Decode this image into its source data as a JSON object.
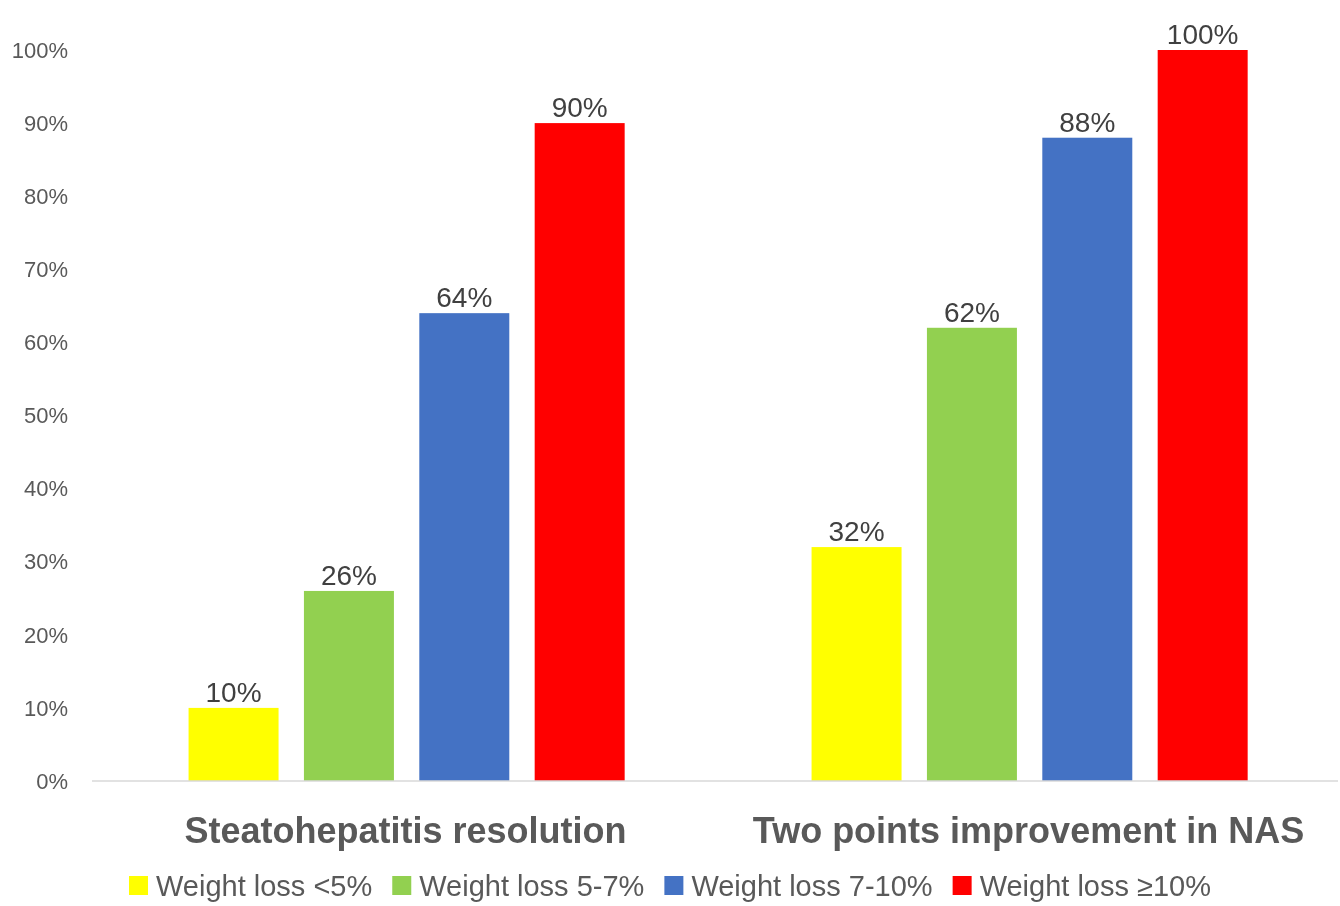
{
  "chart_data": {
    "type": "bar",
    "categories": [
      "Steatohepatitis resolution",
      "Two points improvement in NAS"
    ],
    "series": [
      {
        "name": "Weight loss <5%",
        "color": "#ffff00",
        "values": [
          10,
          32
        ],
        "value_labels": [
          "10%",
          "32%"
        ]
      },
      {
        "name": "Weight loss 5-7%",
        "color": "#92d050",
        "values": [
          26,
          62
        ],
        "value_labels": [
          "26%",
          "62%"
        ]
      },
      {
        "name": "Weight loss 7-10%",
        "color": "#4472c4",
        "values": [
          64,
          88
        ],
        "value_labels": [
          "64%",
          "88%"
        ]
      },
      {
        "name": "Weight loss ≥10%",
        "color": "#ff0000",
        "values": [
          90,
          100
        ],
        "value_labels": [
          "90%",
          "100%"
        ]
      }
    ],
    "ylim": [
      0,
      100
    ],
    "yticks": [
      {
        "value": 0,
        "label": "0%"
      },
      {
        "value": 10,
        "label": "10%"
      },
      {
        "value": 20,
        "label": "20%"
      },
      {
        "value": 30,
        "label": "30%"
      },
      {
        "value": 40,
        "label": "40%"
      },
      {
        "value": 50,
        "label": "50%"
      },
      {
        "value": 60,
        "label": "60%"
      },
      {
        "value": 70,
        "label": "70%"
      },
      {
        "value": 80,
        "label": "80%"
      },
      {
        "value": 90,
        "label": "90%"
      },
      {
        "value": 100,
        "label": "100%"
      }
    ],
    "legend": "bottom"
  }
}
